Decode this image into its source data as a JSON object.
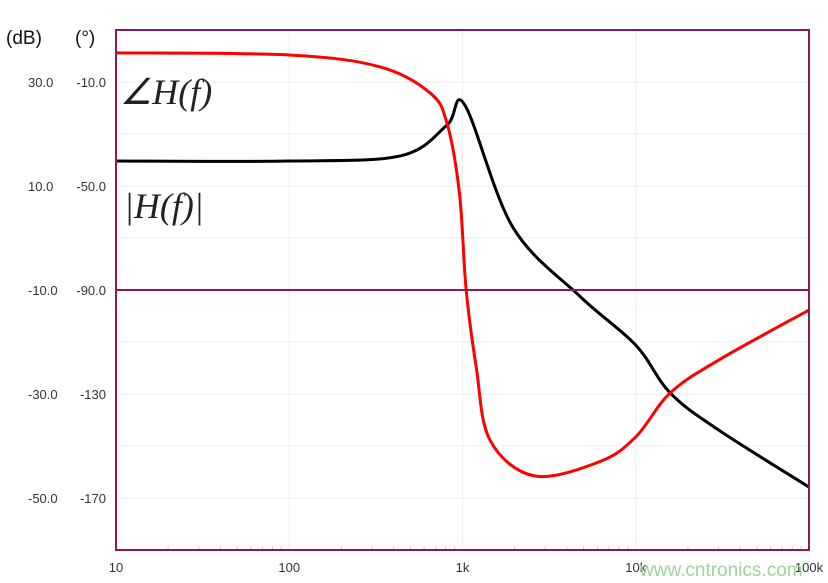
{
  "chart_data": {
    "type": "line",
    "title": "",
    "xlabel": "",
    "ylabel_left_unit": "(dB)",
    "ylabel_right_unit": "(°)",
    "x_scale": "log",
    "xlim": [
      10,
      100000
    ],
    "x_tick_labels": [
      "10",
      "100",
      "1k",
      "10k",
      "100k"
    ],
    "x_ticks": [
      10,
      100,
      1000,
      10000,
      100000
    ],
    "ylim_db": [
      -60,
      40
    ],
    "ylim_deg": [
      -190,
      10
    ],
    "y_ticks_db": [
      30,
      10,
      -10,
      -30,
      -50
    ],
    "y_tick_labels_db": [
      "30.0",
      "10.0",
      "-10.0",
      "-30.0",
      "-50.0"
    ],
    "y_ticks_deg": [
      -10,
      -50,
      -90,
      -130,
      -170
    ],
    "y_tick_labels_deg": [
      "-10.0",
      "-50.0",
      "-90.0",
      "-130",
      "-170"
    ],
    "grid": true,
    "reference_line_db": -10,
    "series": [
      {
        "name": "|H(f)|",
        "axis": "dB",
        "color": "#000000",
        "x": [
          10,
          100,
          440,
          813,
          1030,
          1950,
          4790,
          10000,
          15800,
          30000,
          100000
        ],
        "y": [
          14.8,
          14.8,
          15.8,
          21.7,
          25.6,
          2.1,
          -11.3,
          -20.6,
          -29.8,
          -36.9,
          -47.9
        ]
      },
      {
        "name": "∠H(f)",
        "axis": "deg",
        "color": "#ff0000",
        "x": [
          10,
          100,
          335,
          650,
          813,
          960,
          1050,
          1200,
          1440,
          2600,
          6200,
          10000,
          15800,
          30000,
          100000
        ],
        "y": [
          1.2,
          0.4,
          -4.2,
          -14.2,
          -25.8,
          -52.7,
          -90,
          -119.6,
          -147.7,
          -161.5,
          -156,
          -146.5,
          -129.6,
          -117,
          -97.7
        ]
      }
    ],
    "annotations": [
      "∠H(f)",
      "|H(f)|"
    ],
    "frame_color": "#8b1a5a"
  },
  "watermark": "www.cntronics.com"
}
